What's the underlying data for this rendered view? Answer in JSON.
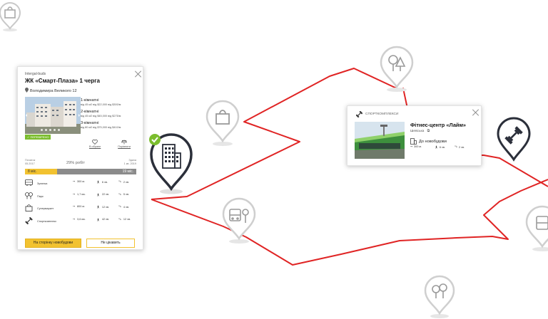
{
  "complex_card": {
    "developer": "Intergal-buds",
    "title": "ЖК «Смарт-Плаза» 1 черга",
    "address": "Володимира Великого 12",
    "verified_label": "ПЕРЕВІРЕНО",
    "rooms": [
      {
        "title": "1-кімнатні",
        "detail": "від 45 м2   від $22,000   від $300/м"
      },
      {
        "title": "2-кімнатні",
        "detail": "від 45 м2   від $45,000   від $275/м"
      },
      {
        "title": "3-кімнатні",
        "detail": "від 80 м2   від $75,000   від $410/м"
      }
    ],
    "favorite_label": "В обране",
    "compare_label": "Порівняти",
    "progress": {
      "started_label": "Початок",
      "started_date": "05.2017",
      "done_label": "29% робіт",
      "done_fraction": 0.29,
      "finish_label": "Здача",
      "finish_date": "1 кв. 2019",
      "elapsed": "8 міс.",
      "remaining": "19 міс."
    },
    "infrastructure": [
      {
        "icon": "bus-icon",
        "name": "Зупинка",
        "distance": "300 м.",
        "walk": "6 хв.",
        "drive": "2 хв."
      },
      {
        "icon": "park-icon",
        "name": "Парк",
        "distance": "1,7 км.",
        "walk": "22 хв.",
        "drive": "5 хв."
      },
      {
        "icon": "shopping-bag-icon",
        "name": "Супермаркет",
        "distance": "800 м.",
        "walk": "12 хв.",
        "drive": "4 хв."
      },
      {
        "icon": "sport-icon",
        "name": "Спорткомплекс",
        "distance": "3,6 км.",
        "walk": "42 хв.",
        "drive": "12 хв."
      }
    ],
    "btn_primary": "На сторінку новобудови",
    "btn_secondary": "Не цікавить"
  },
  "fitness_card": {
    "category": "СПОРТКОМПЛЕКСИ",
    "title": "Фітнес-центр «Лайм»",
    "address": "Шевська",
    "to_label": "До новобудови",
    "distance": "300 м.",
    "walk": "6 хв.",
    "drive": "2 хв."
  },
  "colors": {
    "route": "#e02424",
    "accent": "#f2c230",
    "verified": "#7bbd2d",
    "pin_active": "#2b2f3a",
    "pin_inactive": "#cfcfcf"
  }
}
